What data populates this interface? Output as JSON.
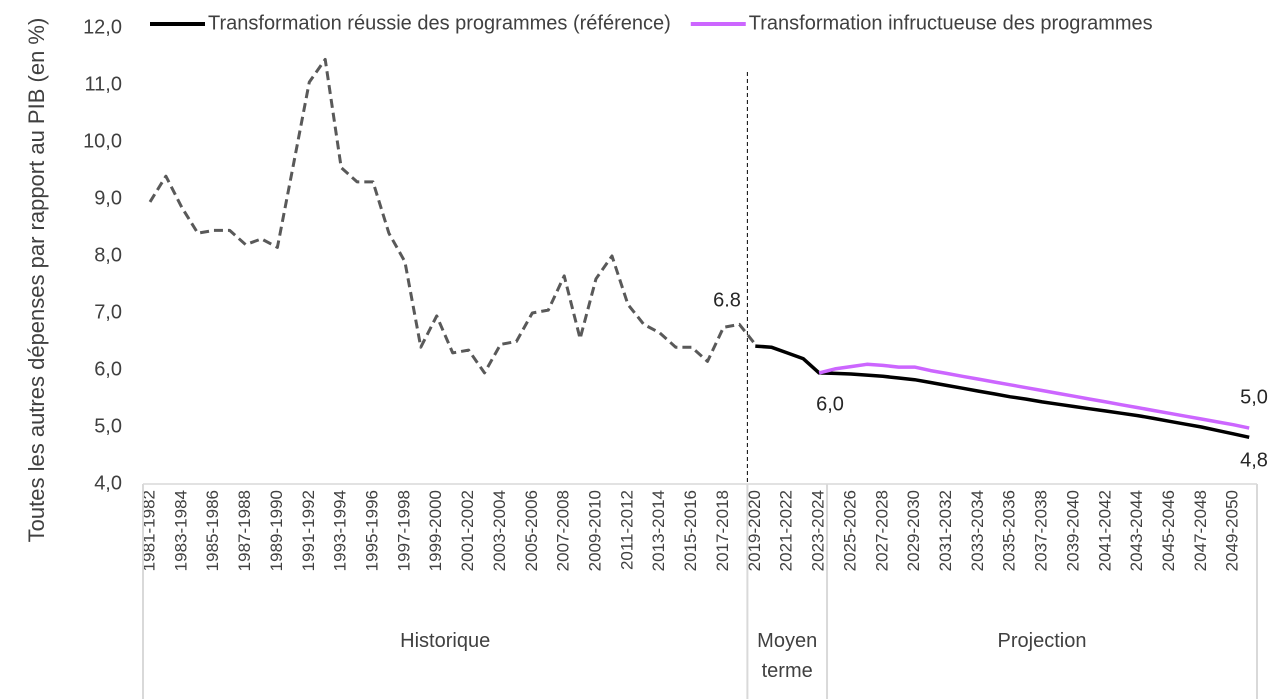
{
  "chart_data": {
    "type": "line",
    "y_label": "Toutes les autres dépenses par rapport au PIB (en %)",
    "categories": [
      "1981-1982",
      null,
      "1983-1984",
      null,
      "1985-1986",
      null,
      "1987-1988",
      null,
      "1989-1990",
      null,
      "1991-1992",
      null,
      "1993-1994",
      null,
      "1995-1996",
      null,
      "1997-1998",
      null,
      "1999-2000",
      null,
      "2001-2002",
      null,
      "2003-2004",
      null,
      "2005-2006",
      null,
      "2007-2008",
      null,
      "2009-2010",
      null,
      "2011-2012",
      null,
      "2013-2014",
      null,
      "2015-2016",
      null,
      "2017-2018",
      null,
      "2019-2020",
      null,
      "2021-2022",
      null,
      "2023-2024",
      null,
      "2025-2026",
      null,
      "2027-2028",
      null,
      "2029-2030",
      null,
      "2031-2032",
      null,
      "2033-2034",
      null,
      "2035-2036",
      null,
      "2037-2038",
      null,
      "2039-2040",
      null,
      "2041-2042",
      null,
      "2043-2044",
      null,
      "2045-2046",
      null,
      "2047-2048",
      null,
      "2049-2050",
      null
    ],
    "groups": [
      "Historique",
      "Moyen terme",
      "Projection"
    ],
    "series": [
      {
        "color": "#595959",
        "dashed": true,
        "values": [
          8.95,
          9.4,
          8.85,
          8.4,
          8.45,
          8.45,
          8.2,
          8.3,
          8.15,
          9.6,
          11.05,
          11.45,
          9.55,
          9.3,
          9.3,
          8.4,
          7.9,
          6.4,
          6.95,
          6.3,
          6.35,
          5.95,
          6.45,
          6.5,
          7.0,
          7.05,
          7.65,
          6.55,
          7.6,
          8.0,
          7.15,
          6.8,
          6.65,
          6.4,
          6.4,
          6.15,
          6.75,
          6.8,
          6.45,
          null,
          null,
          null,
          null,
          null,
          null,
          null,
          null,
          null,
          null,
          null,
          null,
          null,
          null,
          null,
          null,
          null,
          null,
          null,
          null,
          null,
          null,
          null,
          null,
          null,
          null,
          null,
          null,
          null,
          null,
          null
        ]
      },
      {
        "name": "Transformation réussie des programmes (référence)",
        "color": "#000000",
        "values": [
          null,
          null,
          null,
          null,
          null,
          null,
          null,
          null,
          null,
          null,
          null,
          null,
          null,
          null,
          null,
          null,
          null,
          null,
          null,
          null,
          null,
          null,
          null,
          null,
          null,
          null,
          null,
          null,
          null,
          null,
          null,
          null,
          null,
          null,
          null,
          null,
          null,
          null,
          6.42,
          6.4,
          6.3,
          6.2,
          5.95,
          5.94,
          5.93,
          5.91,
          5.89,
          5.86,
          5.83,
          5.78,
          5.73,
          5.68,
          5.63,
          5.58,
          5.53,
          5.49,
          5.44,
          5.4,
          5.36,
          5.32,
          5.28,
          5.24,
          5.2,
          5.15,
          5.1,
          5.05,
          5.0,
          4.94,
          4.88,
          4.82
        ]
      },
      {
        "name": "Transformation infructueuse des programmes",
        "color": "#cc66ff",
        "values": [
          null,
          null,
          null,
          null,
          null,
          null,
          null,
          null,
          null,
          null,
          null,
          null,
          null,
          null,
          null,
          null,
          null,
          null,
          null,
          null,
          null,
          null,
          null,
          null,
          null,
          null,
          null,
          null,
          null,
          null,
          null,
          null,
          null,
          null,
          null,
          null,
          null,
          null,
          null,
          null,
          null,
          null,
          5.95,
          6.02,
          6.06,
          6.1,
          6.08,
          6.05,
          6.05,
          5.99,
          5.94,
          5.89,
          5.84,
          5.79,
          5.74,
          5.69,
          5.64,
          5.59,
          5.54,
          5.49,
          5.44,
          5.39,
          5.34,
          5.29,
          5.24,
          5.19,
          5.14,
          5.09,
          5.04,
          4.98
        ]
      }
    ],
    "annotations": [
      "6.8",
      "6,0",
      "5,0",
      "4,8"
    ],
    "ylim": [
      4,
      12
    ],
    "yticks": [
      {
        "value": 4,
        "label": "4,0"
      },
      {
        "value": 5,
        "label": "5,0"
      },
      {
        "value": 6,
        "label": "6,0"
      },
      {
        "value": 7,
        "label": "7,0"
      },
      {
        "value": 8,
        "label": "8,0"
      },
      {
        "value": 9,
        "label": "9,0"
      },
      {
        "value": 10,
        "label": "10,0"
      },
      {
        "value": 11,
        "label": "11,0"
      },
      {
        "value": 12,
        "label": "12,0"
      }
    ],
    "grid": false
  }
}
